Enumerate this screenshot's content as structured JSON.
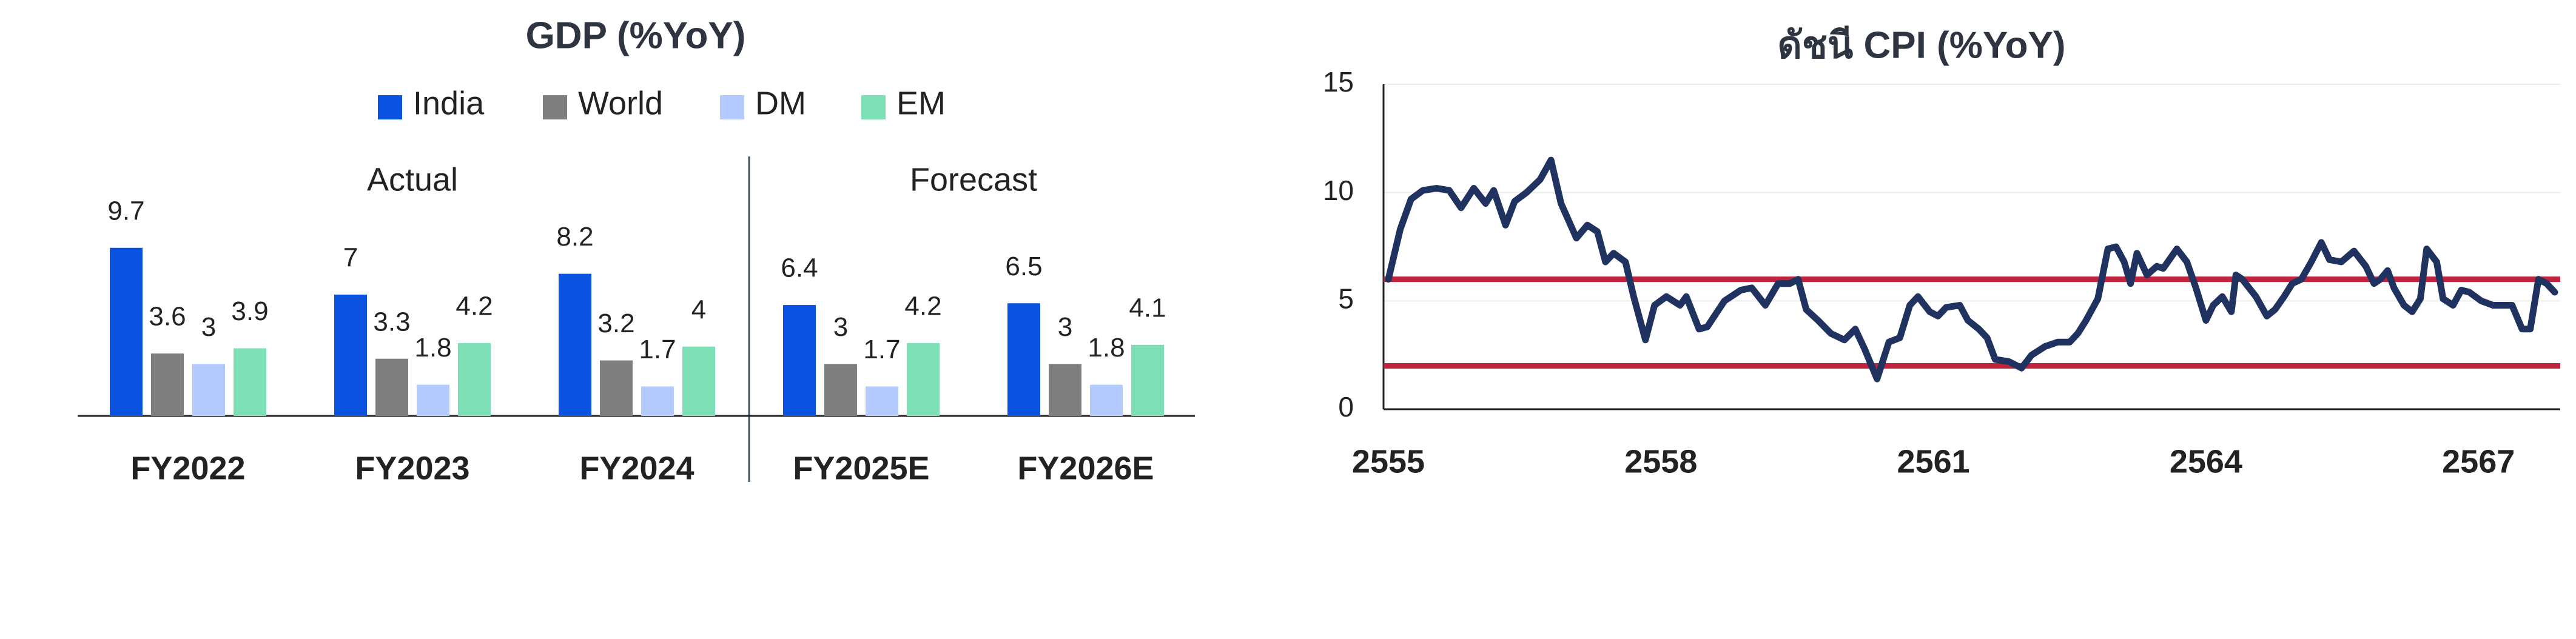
{
  "chart_data": [
    {
      "type": "bar",
      "title": "GDP (%YoY)",
      "categories": [
        "FY2022",
        "FY2023",
        "FY2024",
        "FY2025E",
        "FY2026E"
      ],
      "series": [
        {
          "name": "India",
          "color": "#0a52e0",
          "values": [
            9.7,
            7,
            8.2,
            6.4,
            6.5
          ]
        },
        {
          "name": "World",
          "color": "#7f7f7f",
          "values": [
            3.6,
            3.3,
            3.2,
            3,
            3
          ]
        },
        {
          "name": "DM",
          "color": "#b3cbff",
          "values": [
            3,
            1.8,
            1.7,
            1.7,
            1.8
          ]
        },
        {
          "name": "EM",
          "color": "#7ddfb6",
          "values": [
            3.9,
            4.2,
            4,
            4.2,
            4.1
          ]
        }
      ],
      "annotations": [
        "Actual",
        "Forecast"
      ],
      "ylim": [
        0,
        12
      ]
    },
    {
      "type": "line",
      "title": "ดัชนี CPI (%YoY)",
      "x": [
        2555.0,
        2555.13,
        2555.25,
        2555.38,
        2555.53,
        2555.67,
        2555.8,
        2555.94,
        2556.07,
        2556.16,
        2556.29,
        2556.39,
        2556.52,
        2556.67,
        2556.79,
        2556.9,
        2557.07,
        2557.19,
        2557.3,
        2557.39,
        2557.48,
        2557.61,
        2557.7,
        2557.83,
        2557.93,
        2558.06,
        2558.21,
        2558.28,
        2558.42,
        2558.51,
        2558.7,
        2558.88,
        2559.0,
        2559.15,
        2559.29,
        2559.42,
        2559.51,
        2559.6,
        2559.73,
        2559.87,
        2560.02,
        2560.14,
        2560.24,
        2560.38,
        2560.51,
        2560.63,
        2560.74,
        2560.83,
        2560.96,
        2561.05,
        2561.14,
        2561.29,
        2561.38,
        2561.5,
        2561.59,
        2561.68,
        2561.83,
        2561.97,
        2562.08,
        2562.23,
        2562.37,
        2562.5,
        2562.59,
        2562.68,
        2562.81,
        2562.92,
        2563.01,
        2563.1,
        2563.17,
        2563.24,
        2563.35,
        2563.46,
        2563.53,
        2563.68,
        2563.79,
        2563.89,
        2564.0,
        2564.08,
        2564.18,
        2564.28,
        2564.33,
        2564.4,
        2564.55,
        2564.67,
        2564.76,
        2564.86,
        2564.95,
        2565.05,
        2565.16,
        2565.27,
        2565.36,
        2565.49,
        2565.63,
        2565.76,
        2565.85,
        2565.92,
        2566.0,
        2566.07,
        2566.18,
        2566.27,
        2566.36,
        2566.43,
        2566.54,
        2566.61,
        2566.72,
        2566.81,
        2566.9,
        2567.03,
        2567.16,
        2567.26,
        2567.37,
        2567.48,
        2567.57,
        2567.66,
        2567.75,
        2567.84
      ],
      "series": [
        {
          "color": "#1f3260",
          "values": [
            6.0,
            8.3,
            9.7,
            10.1,
            10.2,
            10.1,
            9.3,
            10.2,
            9.5,
            10.1,
            8.5,
            9.6,
            10.0,
            10.6,
            11.5,
            9.5,
            7.9,
            8.5,
            8.2,
            6.8,
            7.2,
            6.8,
            5.2,
            3.2,
            4.8,
            5.2,
            4.8,
            5.2,
            3.7,
            3.8,
            5.0,
            5.5,
            5.6,
            4.8,
            5.8,
            5.8,
            6.0,
            4.6,
            4.1,
            3.5,
            3.2,
            3.7,
            2.8,
            1.4,
            3.1,
            3.3,
            4.8,
            5.2,
            4.5,
            4.3,
            4.7,
            4.8,
            4.1,
            3.7,
            3.3,
            2.3,
            2.2,
            1.9,
            2.5,
            2.9,
            3.1,
            3.1,
            3.5,
            4.1,
            5.1,
            7.4,
            7.5,
            6.8,
            5.8,
            7.2,
            6.2,
            6.6,
            6.5,
            7.4,
            6.8,
            5.6,
            4.1,
            4.8,
            5.2,
            4.5,
            6.2,
            6.0,
            5.2,
            4.3,
            4.6,
            5.2,
            5.8,
            6.0,
            6.8,
            7.7,
            6.9,
            6.8,
            7.3,
            6.6,
            5.8,
            6.0,
            6.4,
            5.6,
            4.8,
            4.5,
            5.1,
            7.4,
            6.8,
            5.1,
            4.8,
            5.5,
            5.4,
            5.0,
            4.8,
            4.8,
            4.8,
            3.7,
            3.7,
            6.0,
            5.8,
            5.4
          ]
        }
      ],
      "reference_lines": [
        {
          "value": 6,
          "color": "#c0233b"
        },
        {
          "value": 2,
          "color": "#c0233b"
        }
      ],
      "xlim": [
        2555,
        2567.9
      ],
      "xticks": [
        2555,
        2558,
        2561,
        2564,
        2567
      ],
      "ylim": [
        0,
        15
      ],
      "yticks": [
        0,
        5,
        10,
        15
      ],
      "grid": true
    }
  ]
}
